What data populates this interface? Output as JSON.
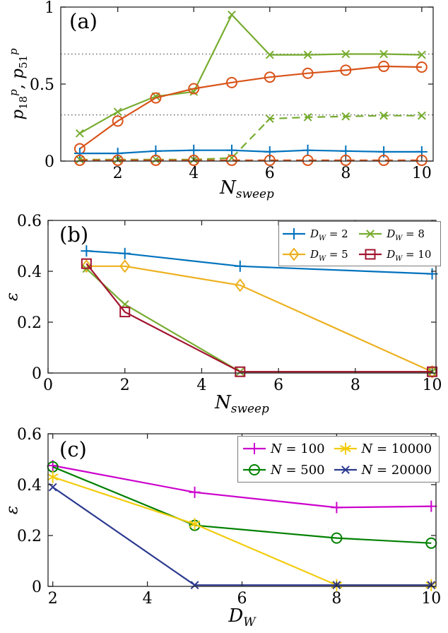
{
  "figure": {
    "background": "#ffffff",
    "axis_color": "#262626",
    "hline_color": "#555555"
  },
  "chart_data": [
    {
      "id": "a",
      "type": "line",
      "panel_label": "(a)",
      "xlabel": "N_{sweep}",
      "ylabel": "p_{18}^{p}, p_{51}^{p}",
      "xlim": [
        0.5,
        10.3
      ],
      "ylim": [
        0,
        1
      ],
      "xticks": [
        2,
        4,
        6,
        8,
        10
      ],
      "xtick_labels": [
        "2",
        "4",
        "6",
        "8",
        "10"
      ],
      "yticks": [
        0,
        0.5,
        1
      ],
      "ytick_labels": [
        "0",
        "0.5",
        "1"
      ],
      "hlines": [
        0.695,
        0.3
      ],
      "grid": false,
      "legend": false,
      "series": [
        {
          "name": "green-x-solid",
          "label": "",
          "color": "#77AC30",
          "marker": "x",
          "line": "solid",
          "x": [
            1,
            2,
            3,
            4,
            5,
            6,
            7,
            8,
            9,
            10
          ],
          "y": [
            0.18,
            0.32,
            0.42,
            0.45,
            0.95,
            0.69,
            0.69,
            0.695,
            0.695,
            0.69
          ]
        },
        {
          "name": "orange-circle-solid",
          "label": "",
          "color": "#D95319",
          "marker": "o",
          "line": "solid",
          "x": [
            1,
            2,
            3,
            4,
            5,
            6,
            7,
            8,
            9,
            10
          ],
          "y": [
            0.08,
            0.26,
            0.41,
            0.47,
            0.51,
            0.545,
            0.57,
            0.59,
            0.615,
            0.61
          ]
        },
        {
          "name": "blue-plus-solid",
          "label": "",
          "color": "#0072BD",
          "marker": "+",
          "line": "solid",
          "x": [
            1,
            2,
            3,
            4,
            5,
            6,
            7,
            8,
            9,
            10
          ],
          "y": [
            0.05,
            0.05,
            0.065,
            0.07,
            0.07,
            0.06,
            0.07,
            0.065,
            0.06,
            0.06
          ]
        },
        {
          "name": "green-x-dashed",
          "label": "",
          "color": "#77AC30",
          "marker": "x",
          "line": "dashed",
          "x": [
            1,
            2,
            3,
            4,
            5,
            6,
            7,
            8,
            9,
            10
          ],
          "y": [
            0.01,
            0.01,
            0.01,
            0.01,
            0.02,
            0.275,
            0.285,
            0.29,
            0.295,
            0.295
          ]
        },
        {
          "name": "orange-circle-dashed",
          "label": "",
          "color": "#D95319",
          "marker": "o",
          "line": "dashed",
          "x": [
            1,
            2,
            3,
            4,
            5,
            6,
            7,
            8,
            9,
            10
          ],
          "y": [
            0.005,
            0.005,
            0.005,
            0.005,
            0.005,
            0.005,
            0.005,
            0.005,
            0.005,
            0.005
          ]
        }
      ]
    },
    {
      "id": "b",
      "type": "line",
      "panel_label": "(b)",
      "xlabel": "N_{sweep}",
      "ylabel": "ε",
      "xlim": [
        0,
        10.1
      ],
      "ylim": [
        0,
        0.6
      ],
      "xticks": [
        0,
        2,
        4,
        6,
        8,
        10
      ],
      "xtick_labels": [
        "0",
        "2",
        "4",
        "6",
        "8",
        "10"
      ],
      "yticks": [
        0,
        0.2,
        0.4,
        0.6
      ],
      "ytick_labels": [
        "0",
        "0.2",
        "0.4",
        "0.6"
      ],
      "hlines": [],
      "grid": false,
      "legend": true,
      "series": [
        {
          "name": "DW-2",
          "label": "D_{W} = 2",
          "color": "#0072BD",
          "marker": "+",
          "line": "solid",
          "x": [
            1,
            2,
            5,
            10
          ],
          "y": [
            0.48,
            0.47,
            0.42,
            0.39
          ]
        },
        {
          "name": "DW-5",
          "label": "D_{W} = 5",
          "color": "#EDB120",
          "marker": "diamond",
          "line": "solid",
          "x": [
            1,
            2,
            5,
            10
          ],
          "y": [
            0.42,
            0.42,
            0.345,
            0.005
          ]
        },
        {
          "name": "DW-8",
          "label": "D_{W} = 8",
          "color": "#77AC30",
          "marker": "x",
          "line": "solid",
          "x": [
            1,
            2,
            5,
            10
          ],
          "y": [
            0.41,
            0.27,
            0.005,
            0.005
          ]
        },
        {
          "name": "DW-10",
          "label": "D_{W} = 10",
          "color": "#A2142F",
          "marker": "square",
          "line": "solid",
          "x": [
            1,
            2,
            5,
            10
          ],
          "y": [
            0.43,
            0.24,
            0.005,
            0.005
          ]
        }
      ]
    },
    {
      "id": "c",
      "type": "line",
      "panel_label": "(c)",
      "xlabel": "D_{W}",
      "ylabel": "ε",
      "xlim": [
        1.9,
        10.1
      ],
      "ylim": [
        0,
        0.6
      ],
      "xticks": [
        2,
        4,
        6,
        8,
        10
      ],
      "xtick_labels": [
        "2",
        "4",
        "6",
        "8",
        "10"
      ],
      "yticks": [
        0,
        0.2,
        0.4,
        0.6
      ],
      "ytick_labels": [
        "0",
        "0.2",
        "0.4",
        "0.6"
      ],
      "hlines": [],
      "grid": false,
      "legend": true,
      "series": [
        {
          "name": "N-100",
          "label": "N = 100",
          "color": "#CC00CC",
          "marker": "+",
          "line": "solid",
          "x": [
            2,
            5,
            8,
            10
          ],
          "y": [
            0.475,
            0.37,
            0.31,
            0.315
          ]
        },
        {
          "name": "N-500",
          "label": "N = 500",
          "color": "#008000",
          "marker": "o",
          "line": "solid",
          "x": [
            2,
            5,
            8,
            10
          ],
          "y": [
            0.47,
            0.24,
            0.19,
            0.17
          ]
        },
        {
          "name": "N-10000",
          "label": "N = 10000",
          "color": "#F2CC0C",
          "marker": "star",
          "line": "solid",
          "x": [
            2,
            5,
            8,
            10
          ],
          "y": [
            0.43,
            0.245,
            0.005,
            0.005
          ]
        },
        {
          "name": "N-20000",
          "label": "N = 20000",
          "color": "#2B3990",
          "marker": "x",
          "line": "solid",
          "x": [
            2,
            5,
            8,
            10
          ],
          "y": [
            0.39,
            0.005,
            0.005,
            0.005
          ]
        }
      ]
    }
  ]
}
